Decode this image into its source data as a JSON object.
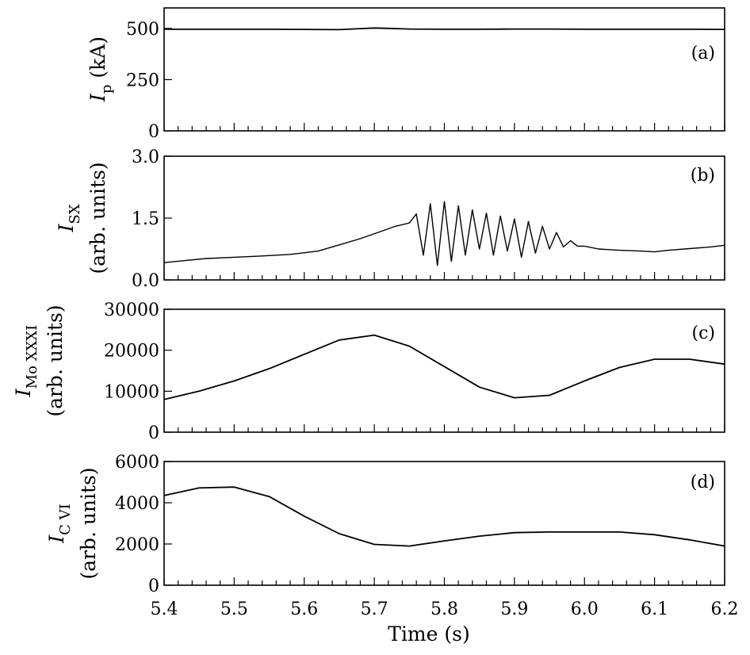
{
  "chart_data": [
    {
      "type": "line",
      "panel_label": "(a)",
      "ylabel_symbol": "I",
      "ylabel_sub": "p",
      "ylabel_unit": "(kA)",
      "ylim": [
        0,
        600
      ],
      "yticks": [
        "0",
        "250",
        "500"
      ],
      "yticks_values": [
        0,
        250,
        500
      ],
      "series": [
        {
          "x": [
            5.4,
            5.45,
            5.5,
            5.55,
            5.6,
            5.65,
            5.68,
            5.7,
            5.72,
            5.75,
            5.8,
            5.85,
            5.9,
            5.95,
            6.0,
            6.05,
            6.1,
            6.15,
            6.2
          ],
          "values": [
            496,
            496,
            496,
            496,
            495,
            494,
            499,
            502,
            500,
            497,
            496,
            496,
            497,
            497,
            496,
            496,
            496,
            496,
            495
          ]
        }
      ]
    },
    {
      "type": "line",
      "panel_label": "(b)",
      "ylabel_symbol": "I",
      "ylabel_sub": "SX",
      "ylabel_unit": "(arb. units)",
      "ylim": [
        0,
        3.0
      ],
      "yticks": [
        "0.0",
        "1.5",
        "3.0"
      ],
      "yticks_values": [
        0,
        1.5,
        3.0
      ],
      "series": [
        {
          "x": [
            5.4,
            5.43,
            5.46,
            5.5,
            5.54,
            5.58,
            5.62,
            5.65,
            5.68,
            5.71,
            5.73,
            5.75,
            5.76,
            5.77,
            5.78,
            5.79,
            5.8,
            5.81,
            5.82,
            5.83,
            5.84,
            5.85,
            5.86,
            5.87,
            5.88,
            5.89,
            5.9,
            5.91,
            5.92,
            5.93,
            5.94,
            5.95,
            5.96,
            5.97,
            5.98,
            5.99,
            6.0,
            6.02,
            6.05,
            6.08,
            6.1,
            6.12,
            6.15,
            6.18,
            6.2
          ],
          "values": [
            0.42,
            0.47,
            0.52,
            0.55,
            0.58,
            0.62,
            0.7,
            0.85,
            1.0,
            1.18,
            1.3,
            1.38,
            1.6,
            0.6,
            1.85,
            0.35,
            1.9,
            0.45,
            1.8,
            0.6,
            1.7,
            0.75,
            1.62,
            0.6,
            1.55,
            0.7,
            1.48,
            0.55,
            1.42,
            0.65,
            1.3,
            0.75,
            1.15,
            0.8,
            0.95,
            0.82,
            0.82,
            0.75,
            0.72,
            0.7,
            0.68,
            0.72,
            0.76,
            0.8,
            0.84
          ]
        }
      ]
    },
    {
      "type": "line",
      "panel_label": "(c)",
      "ylabel_symbol": "I",
      "ylabel_sub": "Mo XXXI",
      "ylabel_unit": "(arb. units)",
      "ylim": [
        0,
        30000
      ],
      "yticks": [
        "0",
        "10000",
        "20000",
        "30000"
      ],
      "yticks_values": [
        0,
        10000,
        20000,
        30000
      ],
      "series": [
        {
          "x": [
            5.4,
            5.45,
            5.5,
            5.55,
            5.6,
            5.65,
            5.7,
            5.75,
            5.8,
            5.85,
            5.9,
            5.95,
            6.0,
            6.05,
            6.1,
            6.15,
            6.2
          ],
          "values": [
            8000,
            10000,
            12500,
            15500,
            19000,
            22500,
            23700,
            21000,
            16000,
            11000,
            8400,
            9000,
            12500,
            15800,
            17800,
            17800,
            16600
          ]
        }
      ]
    },
    {
      "type": "line",
      "panel_label": "(d)",
      "ylabel_symbol": "I",
      "ylabel_sub": "C VI",
      "ylabel_unit": "(arb. units)",
      "ylim": [
        0,
        6000
      ],
      "yticks": [
        "0",
        "2000",
        "4000",
        "6000"
      ],
      "yticks_values": [
        0,
        2000,
        4000,
        6000
      ],
      "xlabel": "Time (s)",
      "xticks": [
        "5.4",
        "5.5",
        "5.6",
        "5.7",
        "5.8",
        "5.9",
        "6.0",
        "6.1",
        "6.2"
      ],
      "xticks_values": [
        5.4,
        5.5,
        5.6,
        5.7,
        5.8,
        5.9,
        6.0,
        6.1,
        6.2
      ],
      "series": [
        {
          "x": [
            5.4,
            5.45,
            5.5,
            5.55,
            5.6,
            5.65,
            5.7,
            5.75,
            5.8,
            5.85,
            5.9,
            5.95,
            6.0,
            6.05,
            6.1,
            6.15,
            6.2
          ],
          "values": [
            4350,
            4720,
            4760,
            4300,
            3350,
            2500,
            1980,
            1900,
            2150,
            2380,
            2550,
            2580,
            2580,
            2580,
            2450,
            2200,
            1900
          ]
        }
      ]
    }
  ],
  "xlim": [
    5.4,
    6.2
  ],
  "minor_x_step": 0.02
}
